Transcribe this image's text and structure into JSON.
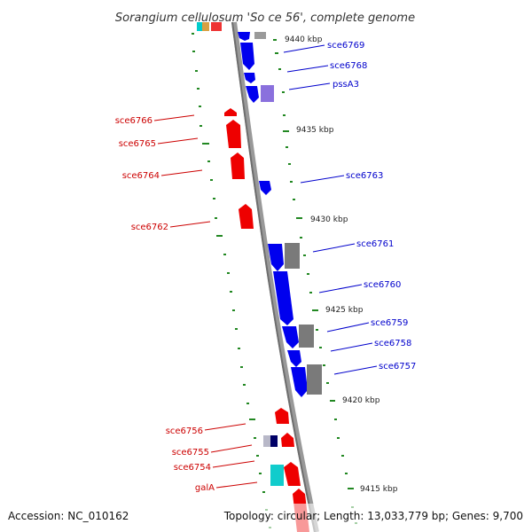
{
  "title": "Sorangium cellulosum 'So ce 56', complete genome",
  "accession": "Accession: NC_010162",
  "topology": "Topology: circular; Length: 13,033,779 bp; Genes: 9,700",
  "kbp_markers": [
    "9440 kbp",
    "9435 kbp",
    "9430 kbp",
    "9425 kbp",
    "9420 kbp",
    "9415 kbp"
  ],
  "genes_forward": [
    "sce6769",
    "sce6768",
    "pssA3",
    "sce6763",
    "sce6761",
    "sce6760",
    "sce6759",
    "sce6758",
    "sce6757"
  ],
  "genes_reverse": [
    "sce6766",
    "sce6765",
    "sce6764",
    "sce6762",
    "sce6756",
    "sce6755",
    "sce6754",
    "galA"
  ],
  "colors": {
    "forward_gene": "#0000ee",
    "reverse_gene": "#ee0000",
    "pseudo_gene": "#808080",
    "purple_gene": "#8866dd",
    "cyan_gene": "#00cccc",
    "tick": "#228822",
    "backbone": "#8c8c8c"
  }
}
